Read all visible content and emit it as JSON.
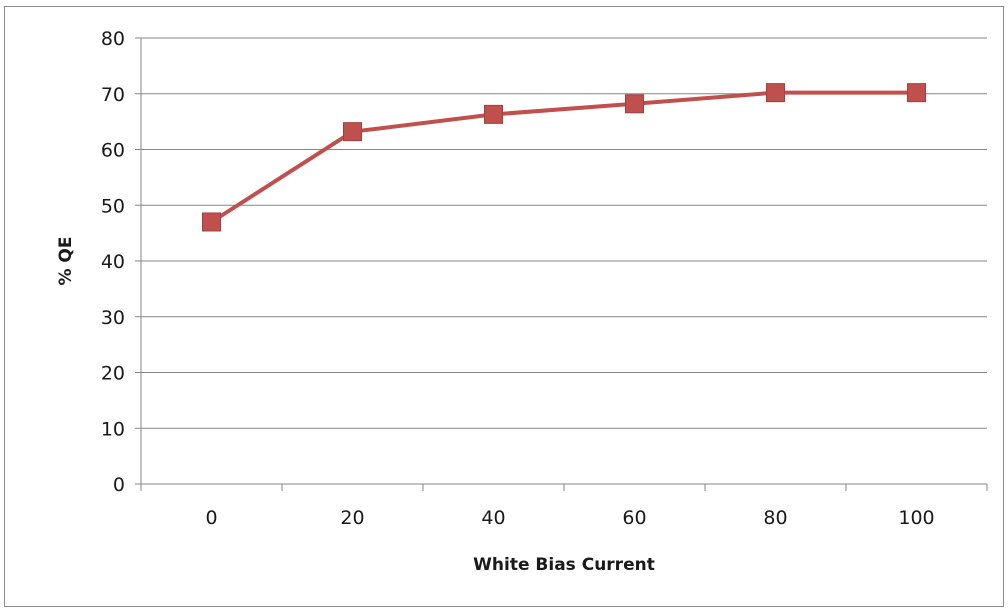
{
  "chart_data": {
    "type": "line",
    "title": "",
    "xlabel": "White Bias Current",
    "ylabel": "% QE",
    "categories": [
      "0",
      "20",
      "40",
      "60",
      "80",
      "100"
    ],
    "series": [
      {
        "values": [
          47,
          63.2,
          66.3,
          68.2,
          70.2,
          70.2
        ],
        "color": "#c0504d",
        "marker": "square"
      }
    ],
    "ylim": [
      0,
      80
    ],
    "yticks": [
      0,
      10,
      20,
      30,
      40,
      50,
      60,
      70,
      80
    ],
    "grid": true,
    "legend": false
  }
}
